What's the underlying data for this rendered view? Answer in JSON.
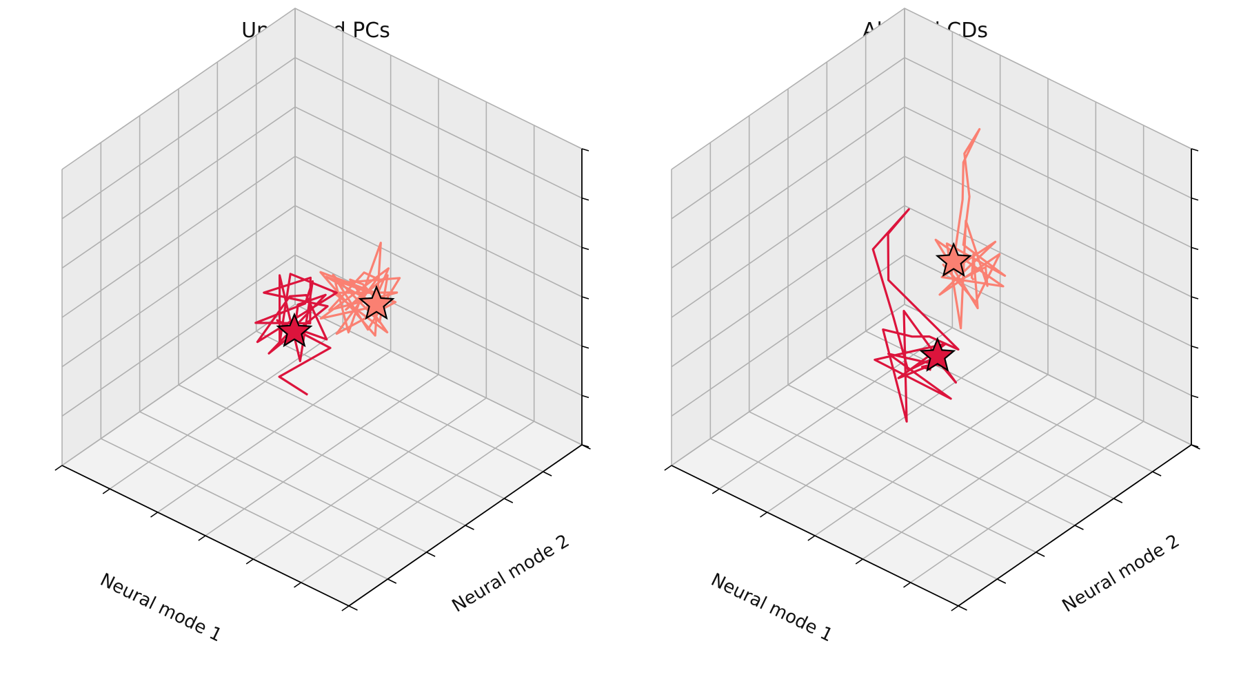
{
  "colors": {
    "condition_a": "#FA8072",
    "condition_b": "#DC143C",
    "pane_floor": "#f2f2f2",
    "pane_wall": "#ebebeb",
    "grid": "#b0b0b0",
    "marker_edge": "#000000"
  },
  "chart_data": [
    {
      "type": "line",
      "projection": "3d",
      "title": "Unaligned PCs",
      "xlabel": "Neural mode 1",
      "ylabel": "Neural mode 2",
      "zlabel": "",
      "grid": true,
      "legend": "none",
      "series": [
        {
          "color": "#FA8072",
          "marker": "star",
          "points": [
            [
              0.3,
              0.45,
              0.62
            ],
            [
              0.36,
              0.52,
              0.58
            ],
            [
              0.28,
              0.4,
              0.7
            ],
            [
              0.4,
              0.48,
              0.55
            ],
            [
              0.32,
              0.56,
              0.66
            ],
            [
              0.25,
              0.44,
              0.6
            ],
            [
              0.38,
              0.4,
              0.72
            ],
            [
              0.34,
              0.5,
              0.5
            ],
            [
              0.27,
              0.55,
              0.68
            ],
            [
              0.42,
              0.46,
              0.64
            ],
            [
              0.31,
              0.38,
              0.57
            ],
            [
              0.36,
              0.58,
              0.74
            ],
            [
              0.29,
              0.47,
              0.52
            ],
            [
              0.44,
              0.42,
              0.69
            ],
            [
              0.33,
              0.53,
              0.61
            ],
            [
              0.26,
              0.49,
              0.75
            ],
            [
              0.39,
              0.36,
              0.59
            ],
            [
              0.35,
              0.57,
              0.54
            ],
            [
              0.3,
              0.43,
              0.71
            ],
            [
              0.41,
              0.51,
              0.63
            ],
            [
              0.24,
              0.46,
              0.56
            ],
            [
              0.37,
              0.39,
              0.67
            ],
            [
              0.32,
              0.6,
              0.58
            ],
            [
              0.45,
              0.47,
              0.53
            ],
            [
              0.28,
              0.41,
              0.77
            ],
            [
              0.34,
              0.54,
              0.65
            ],
            [
              0.4,
              0.44,
              0.49
            ],
            [
              0.26,
              0.52,
              0.62
            ],
            [
              0.38,
              0.37,
              0.73
            ],
            [
              0.31,
              0.5,
              0.6
            ]
          ]
        },
        {
          "color": "#DC143C",
          "marker": "star",
          "points": [
            [
              0.55,
              0.5,
              0.18
            ],
            [
              0.6,
              0.44,
              0.25
            ],
            [
              0.52,
              0.56,
              0.32
            ],
            [
              0.64,
              0.48,
              0.4
            ],
            [
              0.57,
              0.4,
              0.47
            ],
            [
              0.5,
              0.52,
              0.38
            ],
            [
              0.62,
              0.58,
              0.44
            ],
            [
              0.58,
              0.46,
              0.52
            ],
            [
              0.66,
              0.42,
              0.35
            ],
            [
              0.53,
              0.6,
              0.48
            ],
            [
              0.61,
              0.5,
              0.56
            ],
            [
              0.55,
              0.38,
              0.42
            ],
            [
              0.68,
              0.54,
              0.5
            ],
            [
              0.56,
              0.48,
              0.3
            ],
            [
              0.63,
              0.62,
              0.46
            ],
            [
              0.51,
              0.44,
              0.54
            ],
            [
              0.65,
              0.4,
              0.43
            ],
            [
              0.59,
              0.56,
              0.37
            ],
            [
              0.54,
              0.5,
              0.58
            ],
            [
              0.67,
              0.46,
              0.49
            ],
            [
              0.57,
              0.61,
              0.41
            ],
            [
              0.62,
              0.42,
              0.33
            ],
            [
              0.52,
              0.54,
              0.51
            ],
            [
              0.6,
              0.52,
              0.45
            ],
            [
              0.58,
              0.48,
              0.39
            ]
          ]
        }
      ]
    },
    {
      "type": "line",
      "projection": "3d",
      "title": "Aligned CDs",
      "xlabel": "Neural mode 1",
      "ylabel": "Neural mode 2",
      "zlabel": "",
      "grid": true,
      "legend": "none",
      "series": [
        {
          "color": "#FA8072",
          "marker": "star",
          "points": [
            [
              0.45,
              0.62,
              0.55
            ],
            [
              0.4,
              0.55,
              0.62
            ],
            [
              0.5,
              0.68,
              0.58
            ],
            [
              0.42,
              0.6,
              0.48
            ],
            [
              0.55,
              0.58,
              0.66
            ],
            [
              0.38,
              0.66,
              0.54
            ],
            [
              0.48,
              0.52,
              0.6
            ],
            [
              0.44,
              0.7,
              0.64
            ],
            [
              0.52,
              0.56,
              0.5
            ],
            [
              0.36,
              0.62,
              0.68
            ],
            [
              0.46,
              0.64,
              0.46
            ],
            [
              0.54,
              0.6,
              0.57
            ],
            [
              0.41,
              0.5,
              0.63
            ],
            [
              0.49,
              0.72,
              0.52
            ],
            [
              0.37,
              0.58,
              0.59
            ],
            [
              0.51,
              0.66,
              0.7
            ],
            [
              0.43,
              0.54,
              0.44
            ],
            [
              0.56,
              0.64,
              0.61
            ],
            [
              0.39,
              0.68,
              0.56
            ],
            [
              0.47,
              0.6,
              0.67
            ],
            [
              0.53,
              0.7,
              0.75
            ],
            [
              0.58,
              0.74,
              0.85
            ],
            [
              0.56,
              0.78,
              0.92
            ],
            [
              0.6,
              0.76,
              0.8
            ],
            [
              0.57,
              0.72,
              0.71
            ],
            [
              0.52,
              0.62,
              0.58
            ]
          ]
        },
        {
          "color": "#DC143C",
          "marker": "star",
          "points": [
            [
              0.42,
              0.4,
              0.38
            ],
            [
              0.5,
              0.46,
              0.32
            ],
            [
              0.38,
              0.36,
              0.44
            ],
            [
              0.55,
              0.42,
              0.28
            ],
            [
              0.45,
              0.5,
              0.4
            ],
            [
              0.6,
              0.38,
              0.34
            ],
            [
              0.4,
              0.46,
              0.26
            ],
            [
              0.52,
              0.34,
              0.42
            ],
            [
              0.48,
              0.52,
              0.3
            ],
            [
              0.35,
              0.42,
              0.36
            ],
            [
              0.58,
              0.48,
              0.46
            ],
            [
              0.44,
              0.32,
              0.24
            ],
            [
              0.62,
              0.44,
              0.4
            ],
            [
              0.47,
              0.38,
              0.48
            ],
            [
              0.54,
              0.54,
              0.36
            ],
            [
              0.39,
              0.48,
              0.42
            ],
            [
              0.65,
              0.5,
              0.52
            ],
            [
              0.7,
              0.56,
              0.62
            ],
            [
              0.66,
              0.6,
              0.7
            ],
            [
              0.72,
              0.52,
              0.58
            ],
            [
              0.6,
              0.46,
              0.44
            ],
            [
              0.5,
              0.4,
              0.34
            ],
            [
              0.43,
              0.44,
              0.4
            ]
          ]
        }
      ]
    }
  ]
}
